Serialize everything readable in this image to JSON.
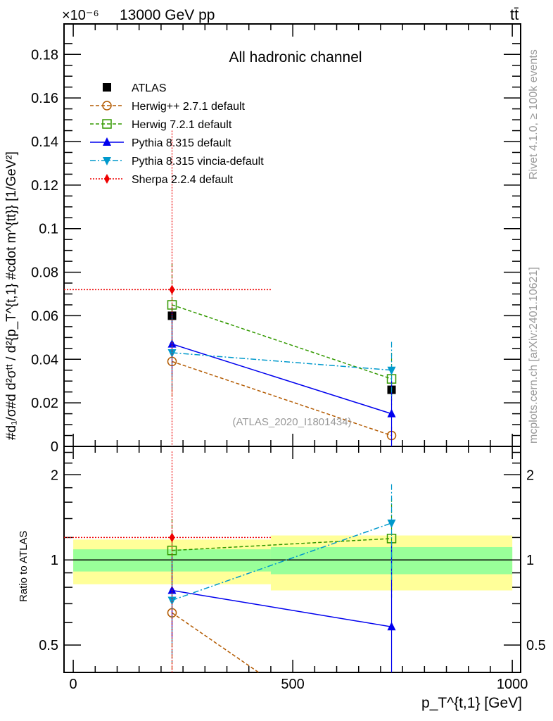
{
  "header": {
    "energy_label": "13000 GeV pp",
    "process_label": "tt̄",
    "exponent_label": "×10⁻⁶"
  },
  "side_labels": {
    "rivet": "Rivet 4.1.0, ≥ 100k events",
    "mcplots": "mcplots.cern.ch [arXiv:2401.10621]"
  },
  "colors": {
    "ATLAS": "#000000",
    "Herwig++": "#b35a00",
    "Herwig7": "#339900",
    "Pythia": "#0000ee",
    "Vincia": "#0099cc",
    "Sherpa": "#ee0000",
    "band_inner": "#99ff99",
    "band_outer": "#ffff99"
  },
  "chart_data": [
    {
      "type": "line",
      "title": "All hadronic channel",
      "analysis_label": "(ATLAS_2020_I1801434)",
      "ylabel": "#d₁/σ#d d²σᵗᵗ / d²{p_T^{t,1} #cdot m^{tt}} [1/GeV²]",
      "xlim": [
        -21,
        1019
      ],
      "ylim": [
        0,
        0.194
      ],
      "yticks": [
        "0",
        "0.02",
        "0.04",
        "0.06",
        "0.08",
        "0.1",
        "0.12",
        "0.14",
        "0.16",
        "0.18"
      ],
      "bins": [
        [
          0,
          450
        ],
        [
          450,
          1000
        ]
      ],
      "x": [
        225,
        725
      ],
      "legend_position": "top-left",
      "series": [
        {
          "name": "ATLAS",
          "key": "ATLAS",
          "values": [
            0.06,
            0.026
          ],
          "errors": [
            0.004,
            0.003
          ],
          "marker": "square-filled",
          "dash": "none"
        },
        {
          "name": "Herwig++ 2.7.1 default",
          "key": "Herwig++",
          "values": [
            0.039,
            0.005
          ],
          "errors": [
            0.016,
            0.004
          ],
          "marker": "circle-open",
          "dash": "5,3"
        },
        {
          "name": "Herwig 7.2.1 default",
          "key": "Herwig7",
          "values": [
            0.065,
            0.031
          ],
          "errors": [
            0.019,
            0.012
          ],
          "marker": "square-open",
          "dash": "5,3"
        },
        {
          "name": "Pythia 8.315 default",
          "key": "Pythia",
          "values": [
            0.047,
            0.015
          ],
          "errors": [
            0.015,
            0.015
          ],
          "marker": "triangle-up",
          "dash": "none"
        },
        {
          "name": "Pythia 8.315 vincia-default",
          "key": "Vincia",
          "values": [
            0.043,
            0.035
          ],
          "errors": [
            0.017,
            0.013
          ],
          "marker": "triangle-down",
          "dash": "8,3,2,3"
        },
        {
          "name": "Sherpa 2.2.4 default",
          "key": "Sherpa",
          "values": [
            0.072,
            null
          ],
          "errors": [
            0.073,
            null
          ],
          "marker": "diamond",
          "dash": "2,2"
        }
      ]
    },
    {
      "type": "line",
      "ylabel": "Ratio to ATLAS",
      "xlabel": "p_T^{t,1} [GeV]",
      "yscale": "log",
      "ylim": [
        0.4,
        2.52
      ],
      "xticks": [
        "0",
        "500",
        "1000"
      ],
      "yticks": [
        "0.5",
        "1",
        "2"
      ],
      "band_inner": [
        [
          0.91,
          1.09
        ],
        [
          0.89,
          1.11
        ]
      ],
      "band_outer": [
        [
          0.82,
          1.18
        ],
        [
          0.78,
          1.22
        ]
      ],
      "series": [
        {
          "key": "Herwig++",
          "values": [
            0.65,
            0.19
          ]
        },
        {
          "key": "Herwig7",
          "values": [
            1.08,
            1.19
          ]
        },
        {
          "key": "Pythia",
          "values": [
            0.78,
            0.58
          ]
        },
        {
          "key": "Vincia",
          "values": [
            0.72,
            1.35
          ]
        },
        {
          "key": "Sherpa",
          "values": [
            1.2,
            null
          ]
        }
      ]
    }
  ]
}
